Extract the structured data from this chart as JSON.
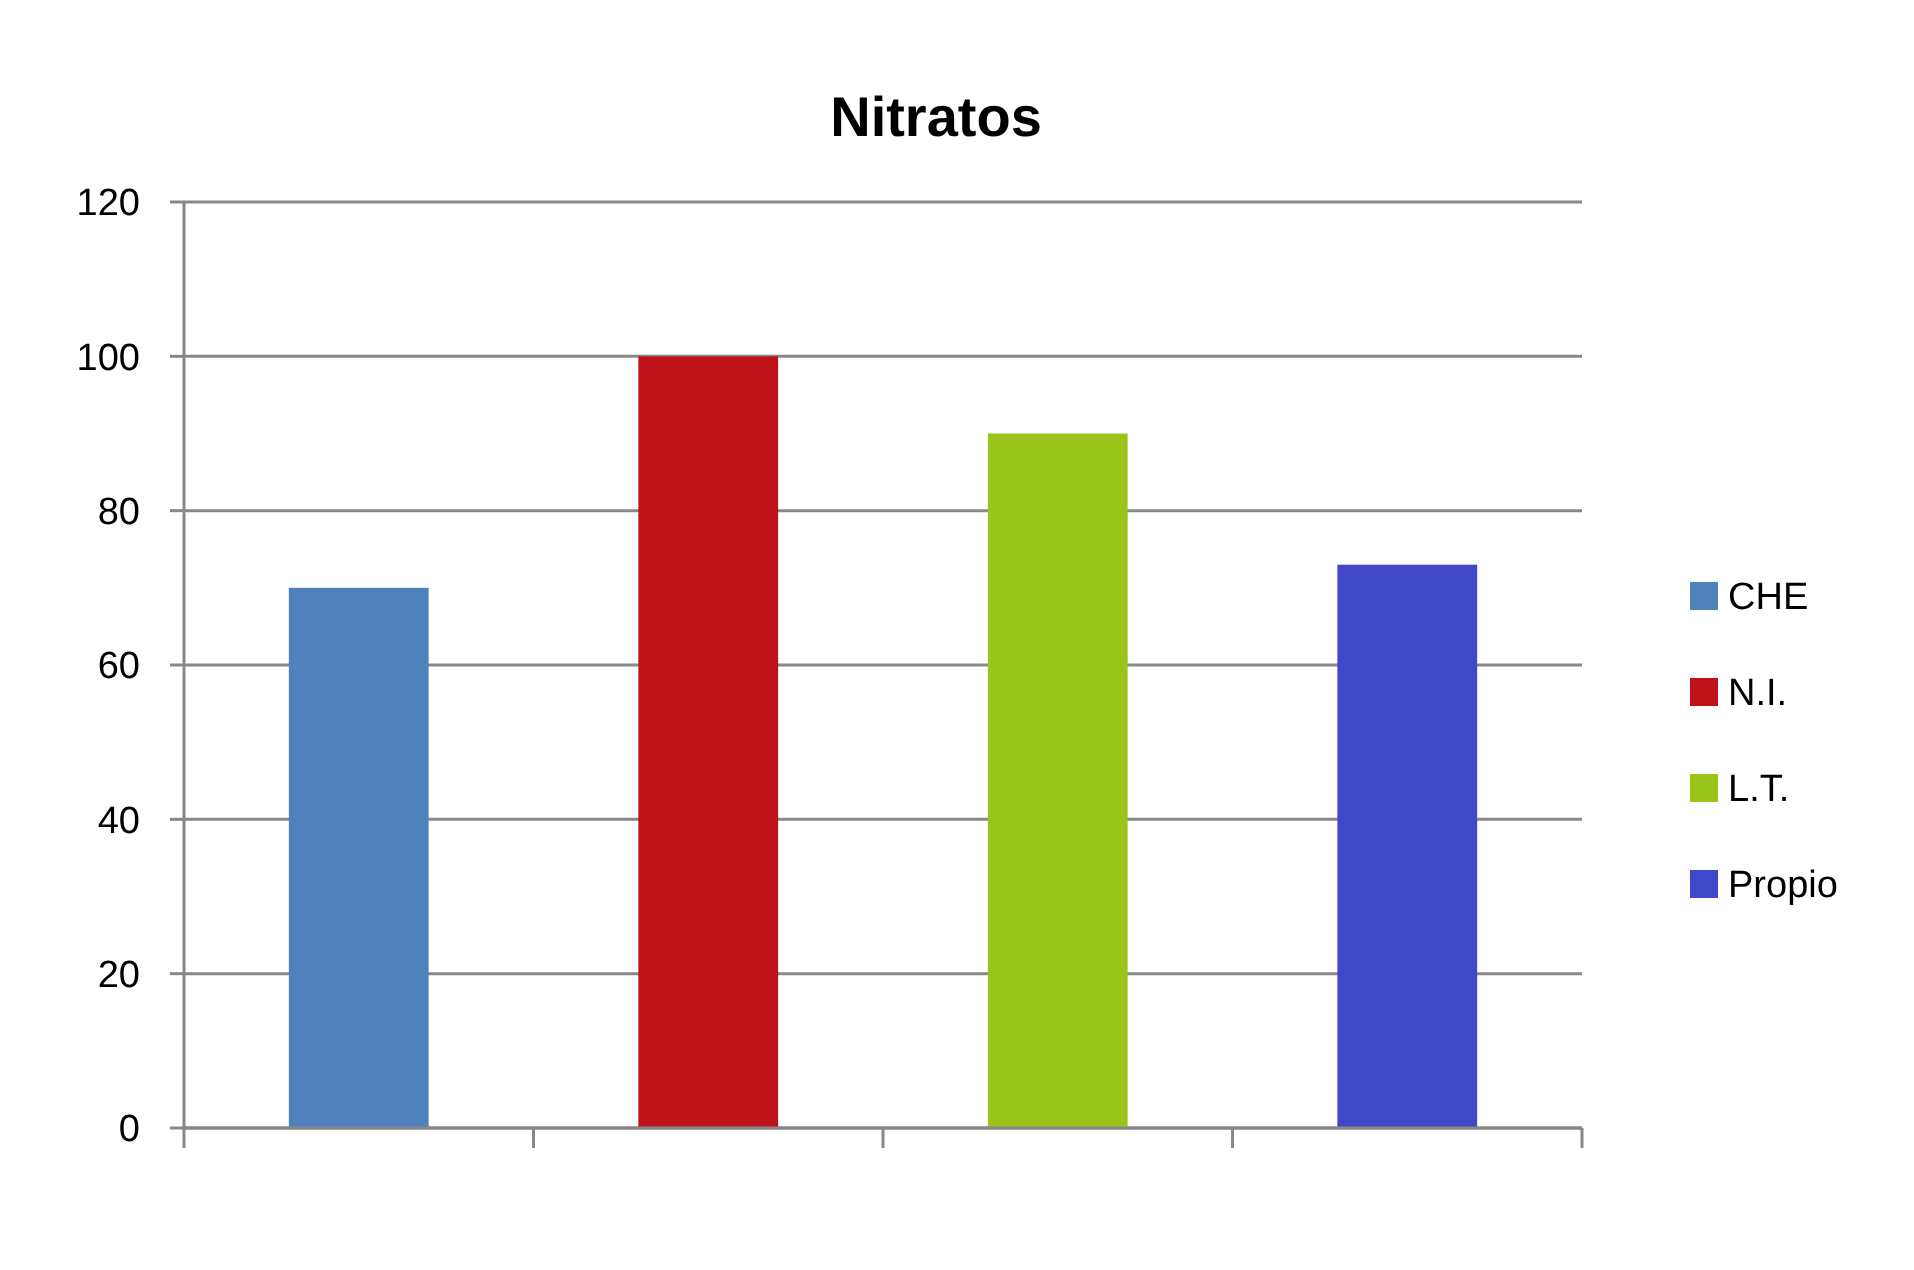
{
  "chart_data": {
    "type": "bar",
    "title": "Nitratos",
    "categories": [
      null,
      null,
      null,
      null
    ],
    "series": [
      {
        "name": "CHE",
        "color": "#4f81bd",
        "values": [
          70,
          null,
          null,
          null
        ]
      },
      {
        "name": "N.I.",
        "color": "#be1118",
        "values": [
          null,
          100,
          null,
          null
        ]
      },
      {
        "name": "L.T.",
        "color": "#9bc41a",
        "values": [
          null,
          null,
          90,
          null
        ]
      },
      {
        "name": "Propio",
        "color": "#3f48c8",
        "values": [
          null,
          null,
          null,
          73
        ]
      }
    ],
    "ylim": [
      0,
      120
    ],
    "yticks": [
      0,
      20,
      40,
      60,
      80,
      100,
      120
    ],
    "grid": "y",
    "legend": "right"
  }
}
